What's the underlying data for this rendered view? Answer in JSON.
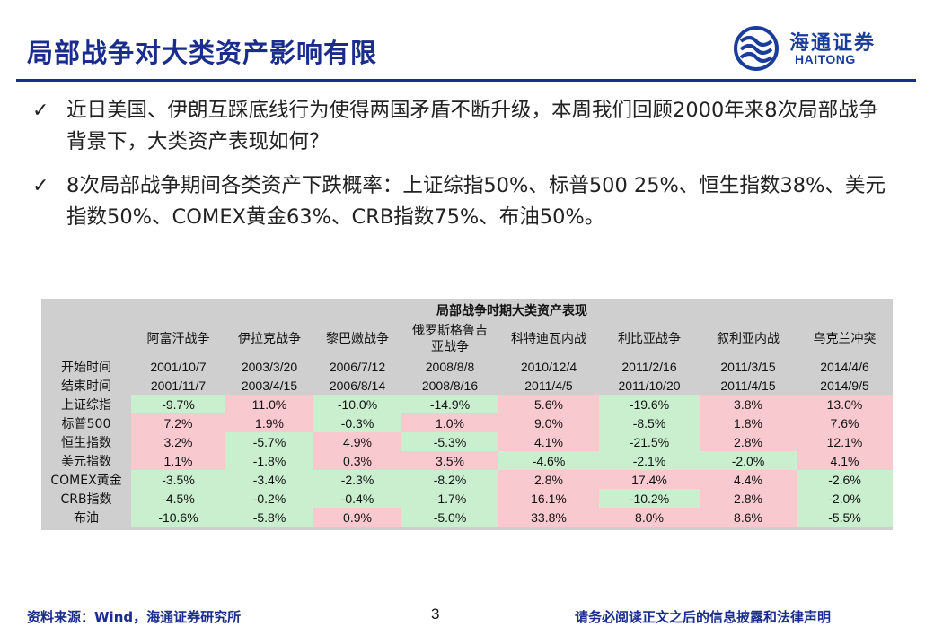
{
  "title": "局部战争对大类资产影响有限",
  "logo": {
    "cn": "海通证券",
    "en": "HAITONG",
    "icon": "haitong-logo-icon",
    "color": "#1a3d9a"
  },
  "bullets": [
    {
      "icon": "checkmark-icon",
      "text": "近日美国、伊朗互踩底线行为使得两国矛盾不断升级，本周我们回顾2000年来8次局部战争背景下，大类资产表现如何？"
    },
    {
      "icon": "checkmark-icon",
      "text": "8次局部战争期间各类资产下跌概率：上证综指50%、标普500 25%、恒生指数38%、美元指数50%、COMEX黄金63%、CRB指数75%、布油50%。"
    }
  ],
  "table": {
    "title": "局部战争时期大类资产表现",
    "wars": [
      {
        "name": "阿富汗战争",
        "start": "2001/10/7",
        "end": "2001/11/7"
      },
      {
        "name": "伊拉克战争",
        "start": "2003/3/20",
        "end": "2003/4/15"
      },
      {
        "name": "黎巴嫩战争",
        "start": "2006/7/12",
        "end": "2006/8/14"
      },
      {
        "name": "俄罗斯格鲁吉亚战争",
        "start": "2008/8/8",
        "end": "2008/8/16"
      },
      {
        "name": "科特迪瓦内战",
        "start": "2010/12/4",
        "end": "2011/4/5"
      },
      {
        "name": "利比亚战争",
        "start": "2011/2/16",
        "end": "2011/10/20"
      },
      {
        "name": "叙利亚内战",
        "start": "2011/3/15",
        "end": "2011/4/15"
      },
      {
        "name": "乌克兰冲突",
        "start": "2014/4/6",
        "end": "2014/9/5"
      }
    ],
    "start_label": "开始时间",
    "end_label": "结束时间",
    "assets": [
      {
        "name": "上证综指",
        "values": [
          "-9.7%",
          "11.0%",
          "-10.0%",
          "-14.9%",
          "5.6%",
          "-19.6%",
          "3.8%",
          "13.0%"
        ]
      },
      {
        "name": "标普500",
        "values": [
          "7.2%",
          "1.9%",
          "-0.3%",
          "1.0%",
          "9.0%",
          "-8.5%",
          "1.8%",
          "7.6%"
        ]
      },
      {
        "name": "恒生指数",
        "values": [
          "3.2%",
          "-5.7%",
          "4.9%",
          "-5.3%",
          "4.1%",
          "-21.5%",
          "2.8%",
          "12.1%"
        ]
      },
      {
        "name": "美元指数",
        "values": [
          "1.1%",
          "-1.8%",
          "0.3%",
          "3.5%",
          "-4.6%",
          "-2.1%",
          "-2.0%",
          "4.1%"
        ]
      },
      {
        "name": "COMEX黄金",
        "values": [
          "-3.5%",
          "-3.4%",
          "-2.3%",
          "-8.2%",
          "2.8%",
          "17.4%",
          "4.4%",
          "-2.6%"
        ]
      },
      {
        "name": "CRB指数",
        "values": [
          "-4.5%",
          "-0.2%",
          "-0.4%",
          "-1.7%",
          "16.1%",
          "-10.2%",
          "2.8%",
          "-2.0%"
        ]
      },
      {
        "name": "布油",
        "values": [
          "-10.6%",
          "-5.8%",
          "0.9%",
          "-5.0%",
          "33.8%",
          "8.0%",
          "8.6%",
          "-5.5%"
        ]
      }
    ],
    "colors": {
      "positive": "#f8c9cf",
      "negative": "#c9efcf",
      "header": "#cfcfcf"
    }
  },
  "footer": {
    "source": "资料来源：Wind，海通证券研究所",
    "page": "3",
    "disclaimer": "请务必阅读正文之后的信息披露和法律声明"
  }
}
